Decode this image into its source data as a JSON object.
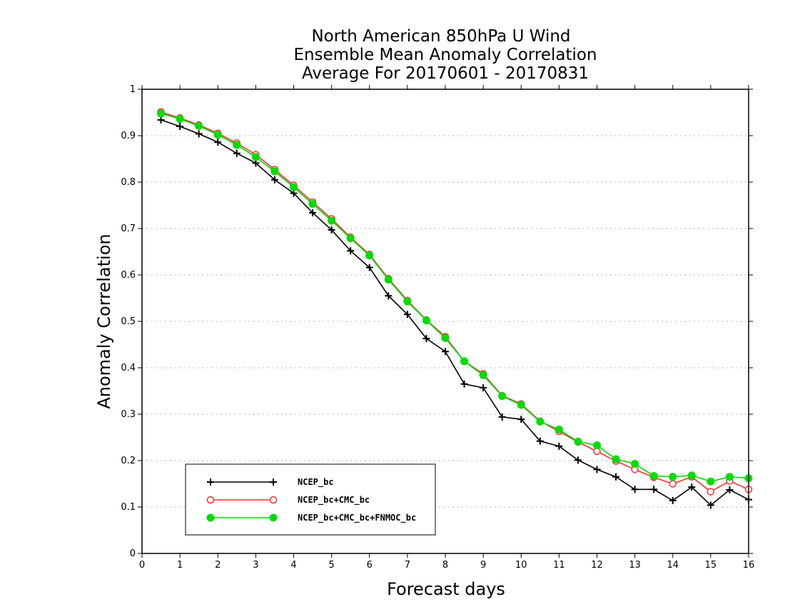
{
  "chart_data": {
    "type": "line",
    "title_lines": [
      "North American 850hPa U Wind",
      "Ensemble Mean Anomaly Correlation",
      "Average For 20170601 - 20170831"
    ],
    "xlabel": "Forecast days",
    "ylabel": "Anomaly Correlation",
    "xlim": [
      0,
      16
    ],
    "ylim": [
      0,
      1
    ],
    "x_ticks": [
      "0",
      "1",
      "2",
      "3",
      "4",
      "5",
      "6",
      "7",
      "8",
      "9",
      "10",
      "11",
      "12",
      "13",
      "14",
      "15",
      "16"
    ],
    "y_ticks": [
      "0",
      "0.1",
      "0.2",
      "0.3",
      "0.4",
      "0.5",
      "0.6",
      "0.7",
      "0.8",
      "0.9",
      "1"
    ],
    "grid": "horizontal-dotted",
    "legend_position": "bottom-left",
    "x": [
      0.5,
      1,
      1.5,
      2,
      2.5,
      3,
      3.5,
      4,
      4.5,
      5,
      5.5,
      6,
      6.5,
      7,
      7.5,
      8,
      8.5,
      9,
      9.5,
      10,
      10.5,
      11,
      11.5,
      12,
      12.5,
      13,
      13.5,
      14,
      14.5,
      15,
      15.5,
      16
    ],
    "series": [
      {
        "name": "NCEP_bc",
        "color": "#000000",
        "marker": "plus",
        "values": [
          0.934,
          0.92,
          0.904,
          0.886,
          0.862,
          0.841,
          0.805,
          0.776,
          0.734,
          0.697,
          0.652,
          0.616,
          0.555,
          0.515,
          0.463,
          0.435,
          0.365,
          0.357,
          0.294,
          0.289,
          0.242,
          0.231,
          0.201,
          0.181,
          0.165,
          0.138,
          0.138,
          0.114,
          0.143,
          0.104,
          0.137,
          0.116
        ]
      },
      {
        "name": "NCEP_bc+CMC_bc",
        "color": "#ff3030",
        "marker": "open-circle",
        "values": [
          0.951,
          0.938,
          0.923,
          0.905,
          0.884,
          0.859,
          0.827,
          0.793,
          0.757,
          0.721,
          0.681,
          0.644,
          0.592,
          0.545,
          0.503,
          0.467,
          0.414,
          0.387,
          0.34,
          0.322,
          0.285,
          0.263,
          0.24,
          0.22,
          0.199,
          0.181,
          0.164,
          0.15,
          0.165,
          0.133,
          0.156,
          0.138
        ]
      },
      {
        "name": "NCEP_bc+CMC_bc+FNMOC_bc",
        "color": "#00dc00",
        "marker": "filled-circle",
        "values": [
          0.948,
          0.936,
          0.921,
          0.902,
          0.88,
          0.854,
          0.823,
          0.789,
          0.753,
          0.717,
          0.679,
          0.642,
          0.59,
          0.543,
          0.502,
          0.464,
          0.414,
          0.384,
          0.339,
          0.32,
          0.284,
          0.267,
          0.241,
          0.233,
          0.203,
          0.193,
          0.167,
          0.165,
          0.168,
          0.155,
          0.165,
          0.162
        ]
      }
    ]
  }
}
